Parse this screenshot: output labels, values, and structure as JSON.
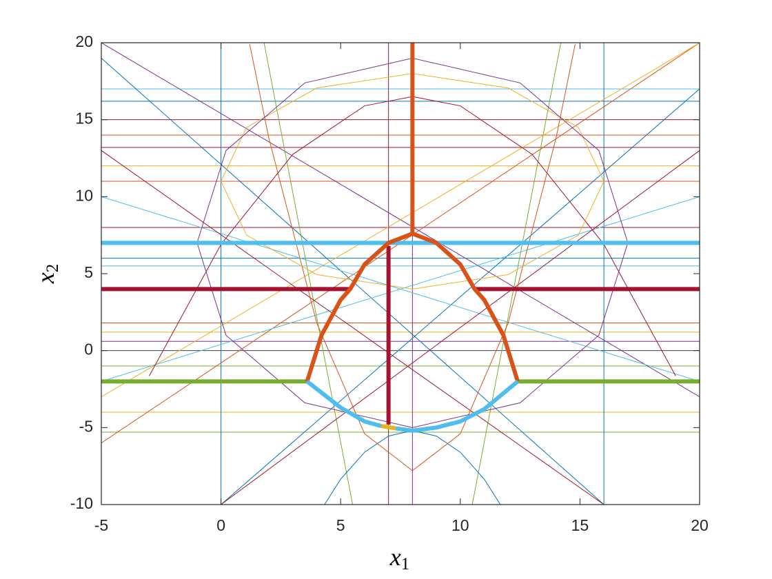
{
  "chart_data": {
    "type": "line",
    "xlabel": {
      "base": "x",
      "sub": "1"
    },
    "ylabel": {
      "base": "x",
      "sub": "2"
    },
    "xlim": [
      -5,
      20
    ],
    "ylim": [
      -10,
      20
    ],
    "xticks": [
      -5,
      0,
      5,
      10,
      15,
      20
    ],
    "yticks": [
      -10,
      -5,
      0,
      5,
      10,
      15,
      20
    ],
    "grid": false,
    "series": [
      {
        "color": "#4DBEEE",
        "width": 1,
        "x": [
          -5,
          20
        ],
        "values": [
          17,
          17
        ]
      },
      {
        "color": "#0072BD",
        "width": 1,
        "x": [
          -5,
          20
        ],
        "values": [
          16.2,
          16.2
        ]
      },
      {
        "color": "#A2142F",
        "width": 1,
        "x": [
          -5,
          20
        ],
        "values": [
          15,
          15
        ]
      },
      {
        "color": "#D95319",
        "width": 1,
        "x": [
          -5,
          20
        ],
        "values": [
          14,
          14
        ]
      },
      {
        "color": "#A2142F",
        "width": 1,
        "x": [
          -5,
          20
        ],
        "values": [
          13.2,
          13.2
        ]
      },
      {
        "color": "#EDB120",
        "width": 1,
        "x": [
          -5,
          20
        ],
        "values": [
          12,
          12
        ]
      },
      {
        "color": "#D95319",
        "width": 1,
        "x": [
          -5,
          20
        ],
        "values": [
          11,
          11
        ]
      },
      {
        "color": "#A2142F",
        "width": 1,
        "x": [
          -5,
          20
        ],
        "values": [
          8,
          8
        ]
      },
      {
        "color": "#0072BD",
        "width": 1,
        "x": [
          -5,
          20
        ],
        "values": [
          6,
          6
        ]
      },
      {
        "color": "#4DBEEE",
        "width": 1,
        "x": [
          -5,
          20
        ],
        "values": [
          5.5,
          5.5
        ]
      },
      {
        "color": "#D95319",
        "width": 1,
        "x": [
          -5,
          20
        ],
        "values": [
          1.8,
          1.8
        ]
      },
      {
        "color": "#EDB120",
        "width": 1,
        "x": [
          -5,
          20
        ],
        "values": [
          1.2,
          1.2
        ]
      },
      {
        "color": "#7E2F8E",
        "width": 1,
        "x": [
          -5,
          20
        ],
        "values": [
          0.6,
          0.6
        ]
      },
      {
        "color": "#404040",
        "width": 1,
        "x": [
          -5,
          20
        ],
        "values": [
          0,
          0
        ]
      },
      {
        "color": "#77AC30",
        "width": 1,
        "x": [
          -5,
          20
        ],
        "values": [
          -1,
          -1
        ]
      },
      {
        "color": "#EDB120",
        "width": 1,
        "x": [
          -5,
          20
        ],
        "values": [
          -4,
          -4
        ]
      },
      {
        "color": "#77AC30",
        "width": 1,
        "x": [
          -5,
          20
        ],
        "values": [
          -5.3,
          -5.3
        ]
      },
      {
        "color": "#0072BD",
        "width": 1,
        "x": [
          0,
          0
        ],
        "values": [
          -10,
          20
        ]
      },
      {
        "color": "#0072BD",
        "width": 1,
        "x": [
          16,
          16
        ],
        "values": [
          -10,
          20
        ]
      },
      {
        "color": "#A2142F",
        "width": 1,
        "x": [
          7,
          7
        ],
        "values": [
          -10,
          20
        ]
      },
      {
        "color": "#7E2F8E",
        "width": 1,
        "x": [
          8,
          8
        ],
        "values": [
          -10,
          20
        ]
      },
      {
        "color": "#0072BD",
        "width": 1,
        "x": [
          -5,
          16
        ],
        "values": [
          19,
          -10
        ]
      },
      {
        "color": "#0072BD",
        "width": 1,
        "x": [
          0,
          20
        ],
        "values": [
          -10,
          17
        ]
      },
      {
        "color": "#D95319",
        "width": 1,
        "x": [
          -5,
          20
        ],
        "values": [
          -6,
          20
        ]
      },
      {
        "color": "#7E2F8E",
        "width": 1,
        "x": [
          -5,
          20
        ],
        "values": [
          20,
          -3
        ]
      },
      {
        "color": "#EDB120",
        "width": 1,
        "x": [
          -5,
          20
        ],
        "values": [
          -3,
          20
        ]
      },
      {
        "color": "#4DBEEE",
        "width": 1,
        "x": [
          -5,
          20
        ],
        "values": [
          10,
          -2
        ]
      },
      {
        "color": "#4DBEEE",
        "width": 1,
        "x": [
          -5,
          20
        ],
        "values": [
          -2,
          10
        ]
      },
      {
        "color": "#77AC30",
        "width": 1,
        "x": [
          1.8,
          5.5
        ],
        "values": [
          20,
          -10
        ]
      },
      {
        "color": "#77AC30",
        "width": 1,
        "x": [
          10.5,
          14.2
        ],
        "values": [
          -10,
          20
        ]
      },
      {
        "color": "#A2142F",
        "width": 1,
        "x": [
          -5,
          16
        ],
        "values": [
          13,
          -10
        ]
      },
      {
        "color": "#A2142F",
        "width": 1,
        "x": [
          0,
          20
        ],
        "values": [
          -10,
          13
        ]
      },
      {
        "color": "#0072BD",
        "width": 1,
        "x": [
          3,
          4,
          5,
          6,
          7,
          8,
          9,
          10,
          11,
          12,
          13
        ],
        "values": [
          -13.95,
          -10.8,
          -8.35,
          -6.6,
          -5.55,
          -5.2,
          -5.55,
          -6.6,
          -8.35,
          -10.8,
          -13.95
        ]
      },
      {
        "color": "#D95319",
        "width": 1,
        "x": [
          1.2,
          2,
          4,
          6,
          8,
          10,
          12,
          14,
          14.8
        ],
        "values": [
          19.9,
          13.8,
          1.8,
          -5.4,
          -7.8,
          -5.4,
          1.8,
          13.8,
          19.9
        ]
      },
      {
        "color": "#A2142F",
        "width": 1,
        "x": [
          -3,
          0,
          3,
          6,
          8,
          10,
          13,
          16,
          19
        ],
        "values": [
          -1.65,
          6.9,
          12.75,
          15.9,
          16.5,
          15.9,
          12.75,
          6.9,
          -1.65
        ]
      },
      {
        "color": "#EDB120",
        "width": 1,
        "x": [
          16,
          14.93,
          12,
          8,
          4,
          1.07,
          0,
          1.07,
          4,
          8,
          12,
          14.93,
          16
        ],
        "values": [
          11,
          14.5,
          17.06,
          18,
          17.06,
          14.5,
          11,
          7.5,
          4.94,
          4,
          4.94,
          7.5,
          11
        ]
      },
      {
        "color": "#7E2F8E",
        "width": 1,
        "x": [
          17,
          15.79,
          12.5,
          8,
          3.5,
          0.21,
          -1,
          0.21,
          3.5,
          8,
          12.5,
          15.79,
          17
        ],
        "values": [
          7,
          13,
          17.39,
          19,
          17.39,
          13,
          7,
          1,
          -3.39,
          -5,
          -3.39,
          1,
          7
        ]
      },
      {
        "color": "#4DBEEE",
        "width": 6,
        "x": [
          -5,
          20
        ],
        "values": [
          7,
          7
        ]
      },
      {
        "color": "#A2142F",
        "width": 6,
        "x": [
          -5,
          5.4
        ],
        "values": [
          4,
          4
        ]
      },
      {
        "color": "#A2142F",
        "width": 6,
        "x": [
          10.6,
          20
        ],
        "values": [
          4,
          4
        ]
      },
      {
        "color": "#A2142F",
        "width": 6,
        "x": [
          7,
          7
        ],
        "values": [
          -4.8,
          6.8
        ]
      },
      {
        "color": "#77AC30",
        "width": 6,
        "x": [
          -5,
          3.6
        ],
        "values": [
          -2,
          -2
        ]
      },
      {
        "color": "#77AC30",
        "width": 6,
        "x": [
          12.4,
          20
        ],
        "values": [
          -2,
          -2
        ]
      },
      {
        "color": "#D95319",
        "width": 6,
        "x": [
          8,
          8
        ],
        "values": [
          7.6,
          20
        ]
      },
      {
        "color": "#D95319",
        "width": 6,
        "x": [
          3.6,
          4.2,
          5,
          5.4,
          6,
          7,
          8,
          9,
          10,
          10.6,
          11,
          11.8,
          12.4
        ],
        "values": [
          -2,
          1,
          3.3,
          4,
          5.6,
          7,
          7.6,
          7,
          5.6,
          4,
          3.3,
          1,
          -2
        ]
      },
      {
        "color": "#4DBEEE",
        "width": 6,
        "x": [
          3.6,
          5,
          6,
          6.7
        ],
        "values": [
          -2,
          -3.7,
          -4.6,
          -4.9
        ]
      },
      {
        "color": "#EDB120",
        "width": 6,
        "x": [
          6.7,
          7.3
        ],
        "values": [
          -4.9,
          -5.05
        ]
      },
      {
        "color": "#4DBEEE",
        "width": 6,
        "x": [
          7.3,
          8,
          9,
          10,
          11,
          12.4
        ],
        "values": [
          -5.05,
          -5.2,
          -5,
          -4.6,
          -3.8,
          -2
        ]
      }
    ]
  }
}
